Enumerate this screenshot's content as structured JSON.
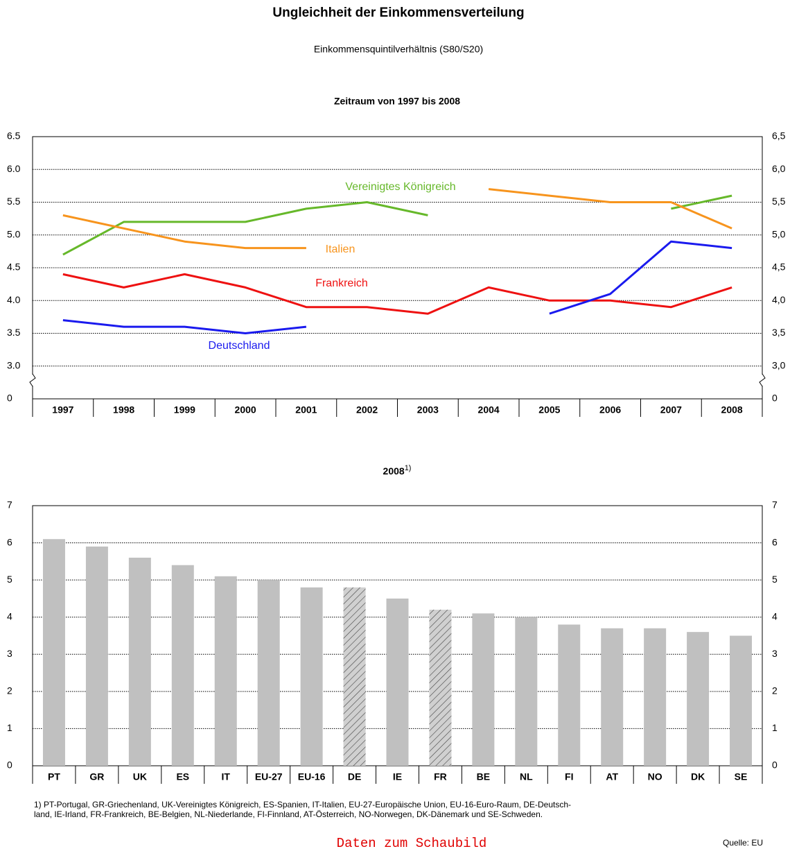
{
  "header": {
    "title": "Ungleichheit der Einkommensverteilung",
    "subtitle": "Einkommensquintilverhältnis (S80/S20)"
  },
  "chart_data": [
    {
      "type": "line",
      "title": "Zeitraum von 1997 bis 2008",
      "categories": [
        "1997",
        "1998",
        "1999",
        "2000",
        "2001",
        "2002",
        "2003",
        "2004",
        "2005",
        "2006",
        "2007",
        "2008"
      ],
      "series": [
        {
          "name": "Vereinigtes Königreich",
          "color": "#66b82a",
          "values": [
            4.7,
            5.2,
            5.2,
            5.2,
            5.4,
            5.5,
            5.3,
            null,
            null,
            null,
            5.4,
            5.6
          ]
        },
        {
          "name": "Italien",
          "color": "#f7941d",
          "values": [
            5.3,
            5.1,
            4.9,
            4.8,
            4.8,
            null,
            null,
            5.7,
            5.6,
            5.5,
            5.5,
            5.1
          ]
        },
        {
          "name": "Frankreich",
          "color": "#ee1111",
          "values": [
            4.4,
            4.2,
            4.4,
            4.2,
            3.9,
            3.9,
            3.8,
            4.2,
            4.0,
            4.0,
            3.9,
            4.2
          ]
        },
        {
          "name": "Deutschland",
          "color": "#1a1aee",
          "values": [
            3.7,
            3.6,
            3.6,
            3.5,
            3.6,
            null,
            null,
            null,
            3.8,
            4.1,
            4.9,
            4.8
          ]
        }
      ],
      "ylim": [
        0,
        6.5
      ],
      "axis_break": [
        0,
        2.5
      ],
      "yticks": [
        {
          "value": 0,
          "label": "0"
        },
        {
          "value": 3.0,
          "label": "3.0"
        },
        {
          "value": 3.5,
          "label": "3.5"
        },
        {
          "value": 4.0,
          "label": "4.0"
        },
        {
          "value": 4.5,
          "label": "4.5"
        },
        {
          "value": 5.0,
          "label": "5.0"
        },
        {
          "value": 5.5,
          "label": "5.5"
        },
        {
          "value": 6.0,
          "label": "6.0"
        },
        {
          "value": 6.5,
          "label": "6.5"
        }
      ],
      "y2lim": [
        0,
        6.5
      ],
      "y2ticks": [
        {
          "value": 0,
          "label": "0"
        },
        {
          "value": 3.0,
          "label": "3,0"
        },
        {
          "value": 3.5,
          "label": "3,5"
        },
        {
          "value": 4.0,
          "label": "4,0"
        },
        {
          "value": 4.5,
          "label": "4,5"
        },
        {
          "value": 5.0,
          "label": "5,0"
        },
        {
          "value": 5.5,
          "label": "5,5"
        },
        {
          "value": 6.0,
          "label": "6,0"
        },
        {
          "value": 6.5,
          "label": "6,5"
        }
      ],
      "grid": true
    },
    {
      "type": "bar",
      "title": "2008",
      "title_note": "1)",
      "categories": [
        "PT",
        "GR",
        "UK",
        "ES",
        "IT",
        "EU-27",
        "EU-16",
        "DE",
        "IE",
        "FR",
        "BE",
        "NL",
        "FI",
        "AT",
        "NO",
        "DK",
        "SE"
      ],
      "values": [
        6.1,
        5.9,
        5.6,
        5.4,
        5.1,
        5.0,
        4.8,
        4.8,
        4.5,
        4.2,
        4.1,
        4.0,
        3.8,
        3.7,
        3.7,
        3.6,
        3.5
      ],
      "bar_styles": [
        "solid",
        "solid",
        "solid",
        "solid",
        "solid",
        "solid",
        "solid",
        "hatched",
        "solid",
        "hatched",
        "solid",
        "solid",
        "solid",
        "solid",
        "solid",
        "solid",
        "solid"
      ],
      "color": "#c0c0c0",
      "ylim": [
        0,
        7
      ],
      "yticks": [
        0,
        1,
        2,
        3,
        4,
        5,
        6,
        7
      ],
      "y2lim": [
        0,
        7
      ],
      "y2ticks": [
        0,
        1,
        2,
        3,
        4,
        5,
        6,
        7
      ],
      "grid": true
    }
  ],
  "footnote": [
    "1) PT-Portugal, GR-Griechenland, UK-Vereinigtes Königreich, ES-Spanien, IT-Italien, EU-27-Europäische Union, EU-16-Euro-Raum, DE-Deutsch-",
    "land, IE-Irland, FR-Frankreich, BE-Belgien, NL-Niederlande, FI-Finnland, AT-Österreich, NO-Norwegen, DK-Dänemark und SE-Schweden."
  ],
  "link": "Daten zum Schaubild",
  "source": "Quelle: EU"
}
